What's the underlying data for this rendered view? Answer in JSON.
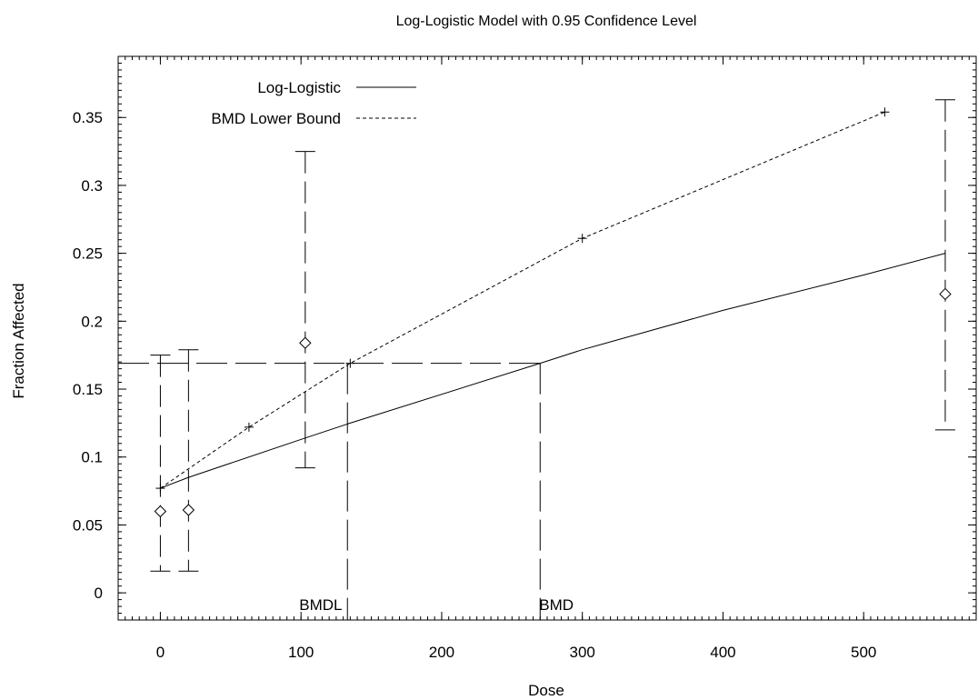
{
  "chart_data": {
    "type": "scatter",
    "title": "Log-Logistic Model with 0.95 Confidence Level",
    "xlabel": "Dose",
    "ylabel": "Fraction Affected",
    "xlim": [
      -30,
      580
    ],
    "ylim": [
      -0.02,
      0.395
    ],
    "xticks": [
      0,
      100,
      200,
      300,
      400,
      500
    ],
    "yticks": [
      0,
      0.05,
      0.1,
      0.15,
      0.2,
      0.25,
      0.3,
      0.35
    ],
    "xtick_labels": [
      "0",
      "100",
      "200",
      "300",
      "400",
      "500"
    ],
    "ytick_labels": [
      "0",
      "0.05",
      "0.1",
      "0.15",
      "0.2",
      "0.25",
      "0.3",
      "0.35"
    ],
    "legend_position": "top-left",
    "observations": [
      {
        "x": 0,
        "y": 0.06,
        "ci_low": 0.016,
        "ci_high": 0.175
      },
      {
        "x": 20,
        "y": 0.061,
        "ci_low": 0.016,
        "ci_high": 0.179
      },
      {
        "x": 103,
        "y": 0.184,
        "ci_low": 0.092,
        "ci_high": 0.325
      },
      {
        "x": 558,
        "y": 0.22,
        "ci_low": 0.12,
        "ci_high": 0.363
      }
    ],
    "series": [
      {
        "name": "Log-Logistic",
        "style": "solid",
        "x": [
          0,
          20,
          103,
          135,
          270,
          300,
          400,
          500,
          558
        ],
        "y": [
          0.077,
          0.085,
          0.114,
          0.125,
          0.169,
          0.179,
          0.208,
          0.234,
          0.25
        ]
      },
      {
        "name": "BMD Lower Bound",
        "style": "dashed",
        "x": [
          0,
          63,
          135,
          300,
          515
        ],
        "y": [
          0.077,
          0.122,
          0.169,
          0.261,
          0.354
        ],
        "markers": "plus"
      }
    ],
    "bmr_level": 0.169,
    "bmdl": {
      "label": "BMDL",
      "x": 133
    },
    "bmd": {
      "label": "BMD",
      "x": 270
    }
  }
}
